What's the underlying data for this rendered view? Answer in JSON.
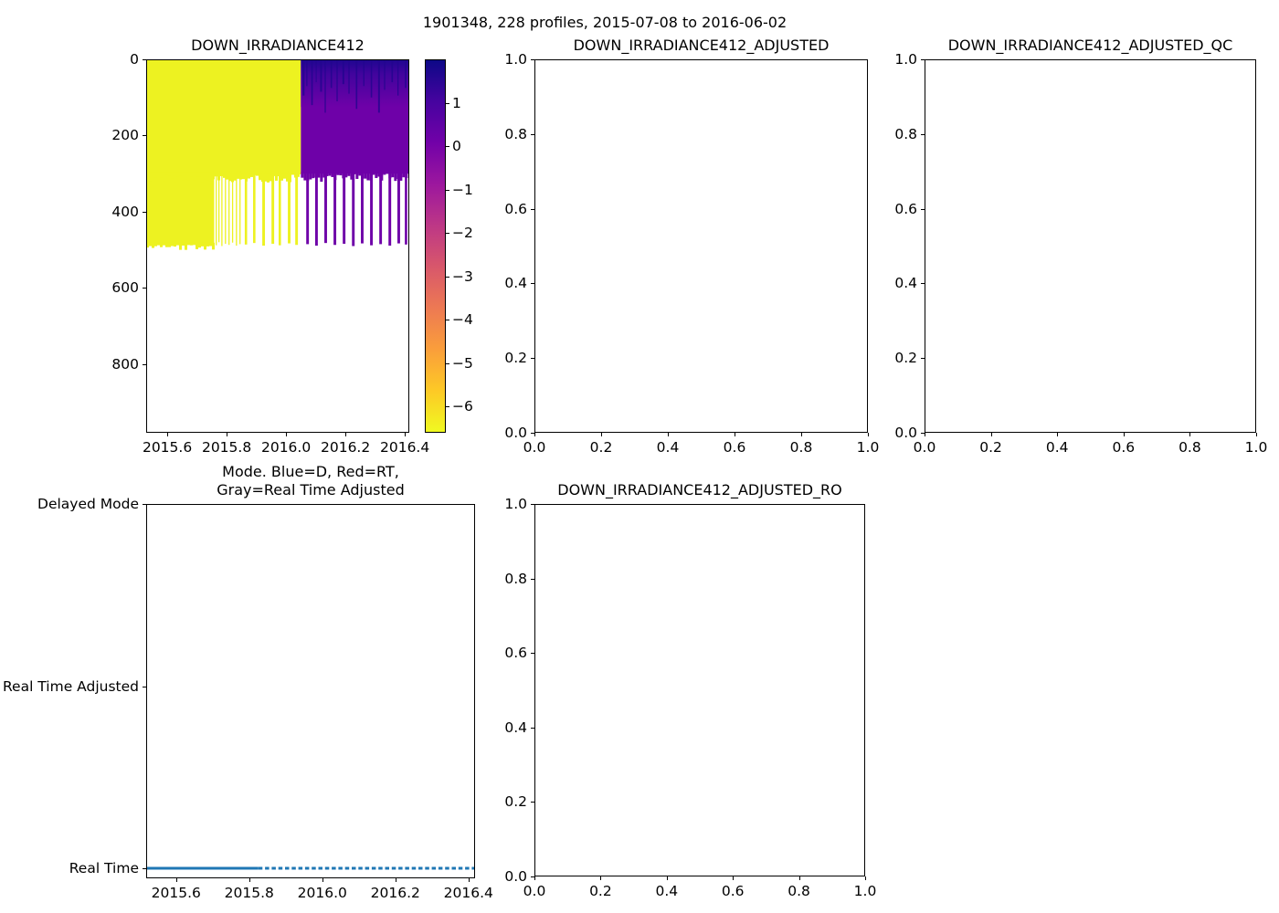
{
  "suptitle": {
    "text": "1901348, 228 profiles, 2015-07-08 to 2016-06-02"
  },
  "palette": {
    "line_blue": "#1f77b4",
    "heat_yellow": "#edf221",
    "heat_purple": "#6e01a8",
    "heat_dark": "#22058f",
    "spine": "#000000"
  },
  "chart_data": [
    {
      "id": "down_irradiance412",
      "type": "heatmap",
      "title": "DOWN_IRRADIANCE412",
      "xlim": [
        2015.529,
        2016.415
      ],
      "ylim": [
        980,
        0
      ],
      "xticks": {
        "values": [
          2015.6,
          2015.8,
          2016.0,
          2016.2,
          2016.4
        ],
        "labels": [
          "2015.6",
          "2015.8",
          "2016.0",
          "2016.2",
          "2016.4"
        ]
      },
      "yticks": {
        "values": [
          0,
          200,
          400,
          600,
          800
        ],
        "labels": [
          "0",
          "200",
          "400",
          "600",
          "800"
        ]
      },
      "colormap": "plasma_r",
      "colorbar": {
        "vmin": -6.6,
        "vmax": 2.0,
        "ticks": {
          "values": [
            1,
            0,
            -1,
            -2,
            -3,
            -4,
            -5,
            -6
          ],
          "labels": [
            "1",
            "0",
            "−1",
            "−2",
            "−3",
            "−4",
            "−5",
            "−6"
          ]
        },
        "stops": [
          "#0d0887",
          "#46039f",
          "#7201a8",
          "#9c179e",
          "#bd3786",
          "#d8576b",
          "#ed7953",
          "#fa9e3b",
          "#fdc926",
          "#f0f921"
        ]
      },
      "regions": {
        "yellow_block": {
          "x0": 2015.529,
          "x1": 2016.05,
          "d0": 0,
          "d1": 302,
          "value": -6.2
        },
        "yellow_deep": {
          "x0": 2015.529,
          "x1": 2015.757,
          "d0": 295,
          "d1": 486,
          "value": -6.2
        },
        "purple_block": {
          "x0": 2016.05,
          "x1": 2016.415,
          "d0": 0,
          "d1": 300,
          "value": 0.0
        },
        "dark_top": {
          "x0": 2016.05,
          "x1": 2016.415,
          "d0": 0,
          "d1": 125,
          "value_max": 1.8
        }
      },
      "deep_stripes": [
        {
          "x": 2015.754,
          "w": 0.004,
          "d": 483
        },
        {
          "x": 2015.763,
          "w": 0.004,
          "d": 488
        },
        {
          "x": 2015.772,
          "w": 0.004,
          "d": 480
        },
        {
          "x": 2015.782,
          "w": 0.004,
          "d": 490
        },
        {
          "x": 2015.794,
          "w": 0.004,
          "d": 484
        },
        {
          "x": 2015.806,
          "w": 0.004,
          "d": 487
        },
        {
          "x": 2015.818,
          "w": 0.004,
          "d": 481
        },
        {
          "x": 2015.831,
          "w": 0.004,
          "d": 489
        },
        {
          "x": 2015.843,
          "w": 0.004,
          "d": 485
        },
        {
          "x": 2015.861,
          "w": 0.008,
          "d": 486
        },
        {
          "x": 2015.889,
          "w": 0.008,
          "d": 482
        },
        {
          "x": 2015.92,
          "w": 0.009,
          "d": 489
        },
        {
          "x": 2015.951,
          "w": 0.009,
          "d": 484
        },
        {
          "x": 2015.975,
          "w": 0.008,
          "d": 488
        },
        {
          "x": 2016.006,
          "w": 0.009,
          "d": 483
        },
        {
          "x": 2016.031,
          "w": 0.009,
          "d": 487
        },
        {
          "x": 2016.068,
          "w": 0.009,
          "d": 485
        },
        {
          "x": 2016.098,
          "w": 0.009,
          "d": 489
        },
        {
          "x": 2016.129,
          "w": 0.009,
          "d": 482
        },
        {
          "x": 2016.16,
          "w": 0.009,
          "d": 487
        },
        {
          "x": 2016.191,
          "w": 0.009,
          "d": 484
        },
        {
          "x": 2016.222,
          "w": 0.009,
          "d": 490
        },
        {
          "x": 2016.252,
          "w": 0.009,
          "d": 483
        },
        {
          "x": 2016.283,
          "w": 0.009,
          "d": 488
        },
        {
          "x": 2016.314,
          "w": 0.009,
          "d": 485
        },
        {
          "x": 2016.345,
          "w": 0.009,
          "d": 489
        },
        {
          "x": 2016.375,
          "w": 0.009,
          "d": 483
        },
        {
          "x": 2016.4,
          "w": 0.008,
          "d": 486
        }
      ],
      "dark_streaks": [
        {
          "x": 2016.056,
          "w": 0.006,
          "d": 95
        },
        {
          "x": 2016.068,
          "w": 0.004,
          "d": 70
        },
        {
          "x": 2016.085,
          "w": 0.005,
          "d": 120
        },
        {
          "x": 2016.1,
          "w": 0.003,
          "d": 60
        },
        {
          "x": 2016.115,
          "w": 0.006,
          "d": 85
        },
        {
          "x": 2016.13,
          "w": 0.004,
          "d": 140
        },
        {
          "x": 2016.15,
          "w": 0.005,
          "d": 75
        },
        {
          "x": 2016.17,
          "w": 0.004,
          "d": 110
        },
        {
          "x": 2016.19,
          "w": 0.006,
          "d": 65
        },
        {
          "x": 2016.21,
          "w": 0.004,
          "d": 90
        },
        {
          "x": 2016.235,
          "w": 0.005,
          "d": 130
        },
        {
          "x": 2016.26,
          "w": 0.004,
          "d": 70
        },
        {
          "x": 2016.285,
          "w": 0.005,
          "d": 100
        },
        {
          "x": 2016.31,
          "w": 0.006,
          "d": 140
        },
        {
          "x": 2016.33,
          "w": 0.004,
          "d": 80
        },
        {
          "x": 2016.355,
          "w": 0.005,
          "d": 60
        },
        {
          "x": 2016.375,
          "w": 0.004,
          "d": 95
        },
        {
          "x": 2016.4,
          "w": 0.005,
          "d": 75
        }
      ]
    },
    {
      "id": "down_irradiance412_adjusted",
      "type": "empty",
      "title": "DOWN_IRRADIANCE412_ADJUSTED",
      "xlim": [
        0,
        1
      ],
      "ylim": [
        0,
        1
      ],
      "xticks": {
        "values": [
          0,
          0.2,
          0.4,
          0.6,
          0.8,
          1.0
        ],
        "labels": [
          "0.0",
          "0.2",
          "0.4",
          "0.6",
          "0.8",
          "1.0"
        ]
      },
      "yticks": {
        "values": [
          0,
          0.2,
          0.4,
          0.6,
          0.8,
          1.0
        ],
        "labels": [
          "0.0",
          "0.2",
          "0.4",
          "0.6",
          "0.8",
          "1.0"
        ]
      }
    },
    {
      "id": "down_irradiance412_adjusted_qc",
      "type": "empty",
      "title": "DOWN_IRRADIANCE412_ADJUSTED_QC",
      "xlim": [
        0,
        1
      ],
      "ylim": [
        0,
        1
      ],
      "xticks": {
        "values": [
          0,
          0.2,
          0.4,
          0.6,
          0.8,
          1.0
        ],
        "labels": [
          "0.0",
          "0.2",
          "0.4",
          "0.6",
          "0.8",
          "1.0"
        ]
      },
      "yticks": {
        "values": [
          0,
          0.2,
          0.4,
          0.6,
          0.8,
          1.0
        ],
        "labels": [
          "0.0",
          "0.2",
          "0.4",
          "0.6",
          "0.8",
          "1.0"
        ]
      }
    },
    {
      "id": "mode",
      "type": "scatter",
      "title": "Mode. Blue=D, Red=RT,\nGray=Real Time Adjusted",
      "xlim": [
        2015.518,
        2016.418
      ],
      "ylim": [
        -0.055,
        2.0
      ],
      "xticks": {
        "values": [
          2015.6,
          2015.8,
          2016.0,
          2016.2,
          2016.4
        ],
        "labels": [
          "2015.6",
          "2015.8",
          "2016.0",
          "2016.2",
          "2016.4"
        ]
      },
      "yticks": {
        "values": [
          0,
          1,
          2
        ],
        "labels": [
          "Real Time",
          "Real Time Adjusted",
          "Delayed Mode"
        ]
      },
      "series": [
        {
          "name": "Real Time",
          "color": "#1f77b4",
          "y": 0,
          "segments": [
            {
              "x0": 2015.518,
              "x1": 2015.825,
              "style": "solid"
            },
            {
              "x0": 2015.825,
              "x1": 2016.418,
              "style": "dashed"
            }
          ]
        }
      ]
    },
    {
      "id": "down_irradiance412_adjusted_ro",
      "type": "empty",
      "title": "DOWN_IRRADIANCE412_ADJUSTED_RO",
      "xlim": [
        0,
        1
      ],
      "ylim": [
        0,
        1
      ],
      "xticks": {
        "values": [
          0,
          0.2,
          0.4,
          0.6,
          0.8,
          1.0
        ],
        "labels": [
          "0.0",
          "0.2",
          "0.4",
          "0.6",
          "0.8",
          "1.0"
        ]
      },
      "yticks": {
        "values": [
          0,
          0.2,
          0.4,
          0.6,
          0.8,
          1.0
        ],
        "labels": [
          "0.0",
          "0.2",
          "0.4",
          "0.6",
          "0.8",
          "1.0"
        ]
      }
    }
  ]
}
